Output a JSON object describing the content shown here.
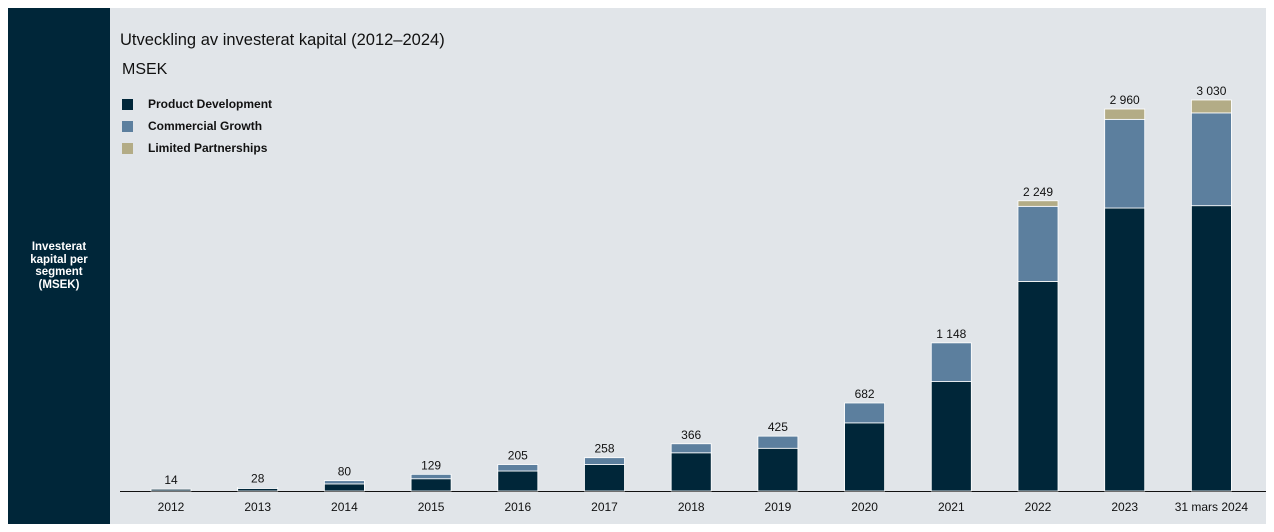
{
  "sidebar": {
    "label": "Investerat kapital per segment (MSEK)"
  },
  "chart_data": {
    "type": "bar",
    "stacked": true,
    "title": "Utveckling av investerat kapital (2012–2024)",
    "subtitle": "MSEK",
    "categories": [
      "2012",
      "2013",
      "2014",
      "2015",
      "2016",
      "2017",
      "2018",
      "2019",
      "2020",
      "2021",
      "2022",
      "2023",
      "31 mars 2024"
    ],
    "totals": [
      14,
      28,
      80,
      129,
      205,
      258,
      366,
      425,
      682,
      1148,
      2249,
      2960,
      3030
    ],
    "total_labels": [
      "14",
      "28",
      "80",
      "129",
      "205",
      "258",
      "366",
      "425",
      "682",
      "1 148",
      "2 249",
      "2 960",
      "3 030"
    ],
    "series": [
      {
        "name": "Product Development",
        "color": "#002639",
        "values": [
          14,
          20,
          55,
          95,
          155,
          205,
          296,
          331,
          528,
          848,
          1624,
          2193,
          2211
        ]
      },
      {
        "name": "Commercial Growth",
        "color": "#5c7f9e",
        "values": [
          0,
          8,
          25,
          34,
          50,
          53,
          70,
          94,
          154,
          300,
          582,
          687,
          719
        ]
      },
      {
        "name": "Limited Partnerships",
        "color": "#b3ac86",
        "values": [
          0,
          0,
          0,
          0,
          0,
          0,
          0,
          0,
          0,
          0,
          43,
          80,
          100
        ]
      }
    ],
    "ylim": [
      0,
      3030
    ],
    "y_axis_visible": false,
    "grid": false,
    "legend_position": "top-left"
  }
}
